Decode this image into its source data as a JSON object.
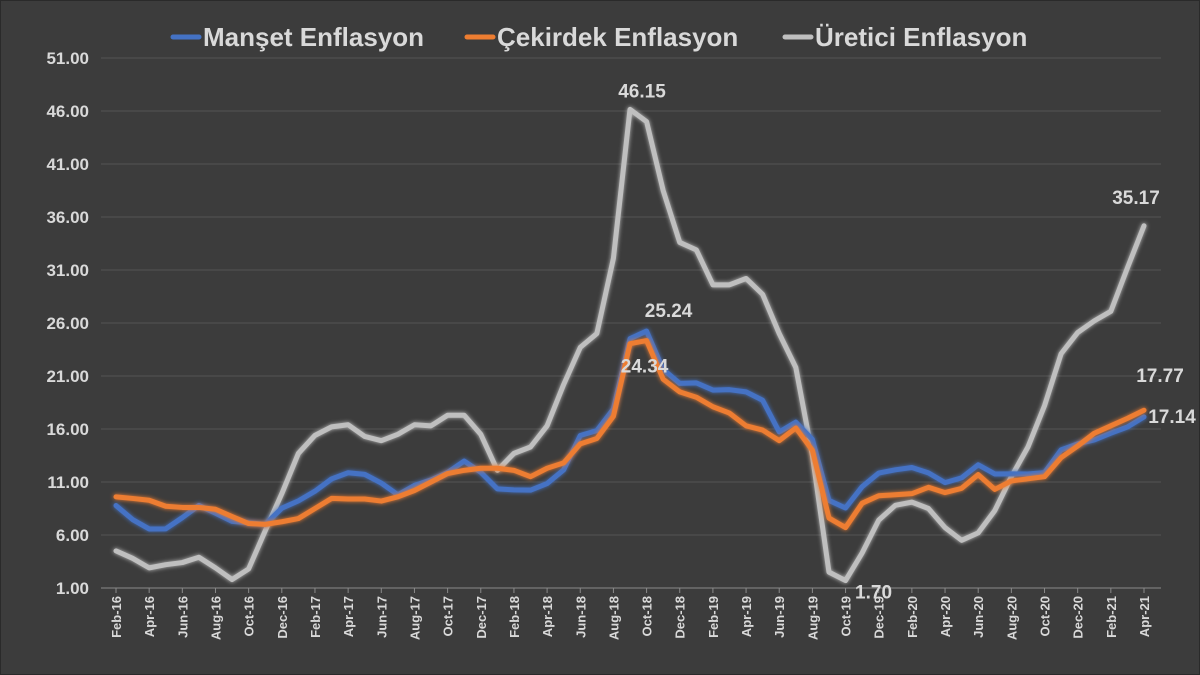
{
  "chart_data": {
    "type": "line",
    "title": "",
    "xlabel": "",
    "ylabel": "",
    "ylim": [
      1,
      51
    ],
    "yticks": [
      "51.00",
      "46.00",
      "41.00",
      "36.00",
      "31.00",
      "26.00",
      "21.00",
      "16.00",
      "11.00",
      "6.00",
      "1.00"
    ],
    "grid": true,
    "legend": "top",
    "x": [
      "Feb-16",
      "Mar-16",
      "Apr-16",
      "May-16",
      "Jun-16",
      "Jul-16",
      "Aug-16",
      "Sep-16",
      "Oct-16",
      "Nov-16",
      "Dec-16",
      "Jan-17",
      "Feb-17",
      "Mar-17",
      "Apr-17",
      "May-17",
      "Jun-17",
      "Jul-17",
      "Aug-17",
      "Sep-17",
      "Oct-17",
      "Nov-17",
      "Dec-17",
      "Jan-18",
      "Feb-18",
      "Mar-18",
      "Apr-18",
      "May-18",
      "Jun-18",
      "Jul-18",
      "Aug-18",
      "Sep-18",
      "Oct-18",
      "Nov-18",
      "Dec-18",
      "Jan-19",
      "Feb-19",
      "Mar-19",
      "Apr-19",
      "May-19",
      "Jun-19",
      "Jul-19",
      "Aug-19",
      "Sep-19",
      "Oct-19",
      "Nov-19",
      "Dec-19",
      "Jan-20",
      "Feb-20",
      "Mar-20",
      "Apr-20",
      "May-20",
      "Jun-20",
      "Jul-20",
      "Aug-20",
      "Sep-20",
      "Oct-20",
      "Nov-20",
      "Dec-20",
      "Jan-21",
      "Feb-21",
      "Mar-21",
      "Apr-21"
    ],
    "x_tick_labels": [
      "Feb-16",
      "Apr-16",
      "Jun-16",
      "Aug-16",
      "Oct-16",
      "Dec-16",
      "Feb-17",
      "Apr-17",
      "Jun-17",
      "Aug-17",
      "Oct-17",
      "Dec-17",
      "Feb-18",
      "Apr-18",
      "Jun-18",
      "Aug-18",
      "Oct-18",
      "Dec-18",
      "Feb-19",
      "Apr-19",
      "Jun-19",
      "Aug-19",
      "Oct-19",
      "Dec-19",
      "Feb-20",
      "Apr-20",
      "Jun-20",
      "Aug-20",
      "Oct-20",
      "Dec-20",
      "Feb-21",
      "Apr-21"
    ],
    "series": [
      {
        "name": "Manşet Enflasyon",
        "color": "#4472c4",
        "values": [
          8.78,
          7.46,
          6.57,
          6.58,
          7.64,
          8.79,
          8.05,
          7.28,
          7.16,
          7.0,
          8.53,
          9.22,
          10.13,
          11.29,
          11.87,
          11.72,
          10.9,
          9.79,
          10.68,
          11.2,
          11.9,
          12.98,
          11.92,
          10.35,
          10.26,
          10.23,
          10.85,
          12.15,
          15.39,
          15.85,
          17.9,
          24.52,
          25.24,
          21.62,
          20.3,
          20.35,
          19.67,
          19.71,
          19.5,
          18.71,
          15.72,
          16.65,
          15.01,
          9.26,
          8.55,
          10.56,
          11.84,
          12.15,
          12.37,
          11.86,
          10.94,
          11.39,
          12.62,
          11.76,
          11.77,
          11.75,
          11.89,
          14.03,
          14.6,
          14.97,
          15.61,
          16.19,
          17.14
        ]
      },
      {
        "name": "Çekirdek Enflasyon",
        "color": "#ed7d31",
        "values": [
          9.6,
          9.45,
          9.28,
          8.71,
          8.6,
          8.6,
          8.43,
          7.74,
          7.08,
          7.0,
          7.25,
          7.55,
          8.5,
          9.45,
          9.4,
          9.4,
          9.2,
          9.6,
          10.2,
          11.0,
          11.8,
          12.1,
          12.3,
          12.3,
          12.1,
          11.5,
          12.3,
          12.8,
          14.6,
          15.1,
          17.2,
          24.05,
          24.34,
          20.7,
          19.5,
          19.0,
          18.1,
          17.5,
          16.3,
          15.9,
          14.9,
          16.1,
          14.0,
          7.6,
          6.7,
          9.0,
          9.7,
          9.8,
          9.9,
          10.5,
          10.0,
          10.4,
          11.7,
          10.3,
          11.1,
          11.3,
          11.5,
          13.3,
          14.4,
          15.6,
          16.3,
          17.0,
          17.77
        ]
      },
      {
        "name": "Üretici Enflasyon",
        "color": "#bfbfbf",
        "values": [
          4.5,
          3.8,
          2.9,
          3.2,
          3.4,
          3.9,
          2.9,
          1.8,
          2.8,
          6.4,
          9.9,
          13.7,
          15.4,
          16.2,
          16.4,
          15.3,
          14.9,
          15.5,
          16.4,
          16.3,
          17.3,
          17.3,
          15.5,
          12.1,
          13.7,
          14.3,
          16.3,
          20.2,
          23.7,
          25.0,
          32.1,
          46.15,
          45.0,
          38.5,
          33.6,
          32.9,
          29.6,
          29.6,
          30.2,
          28.7,
          25.0,
          21.8,
          13.5,
          2.5,
          1.7,
          4.3,
          7.4,
          8.8,
          9.1,
          8.5,
          6.7,
          5.5,
          6.2,
          8.3,
          11.5,
          14.3,
          18.2,
          23.1,
          25.1,
          26.2,
          27.1,
          31.2,
          35.17
        ]
      }
    ],
    "annotations": [
      {
        "text": "46.15",
        "series": "Üretici Enflasyon",
        "x": "Sep-18",
        "y": 46.15
      },
      {
        "text": "25.24",
        "series": "Manşet Enflasyon",
        "x": "Oct-18",
        "y": 25.24
      },
      {
        "text": "24.34",
        "series": "Çekirdek Enflasyon",
        "x": "Oct-18",
        "y": 24.34
      },
      {
        "text": "1.70",
        "series": "Üretici Enflasyon",
        "x": "Oct-19",
        "y": 1.7
      },
      {
        "text": "35.17",
        "series": "Üretici Enflasyon",
        "x": "Apr-21",
        "y": 35.17
      },
      {
        "text": "17.77",
        "series": "Çekirdek Enflasyon",
        "x": "Apr-21",
        "y": 17.77
      },
      {
        "text": "17.14",
        "series": "Manşet Enflasyon",
        "x": "Apr-21",
        "y": 17.14
      }
    ]
  }
}
